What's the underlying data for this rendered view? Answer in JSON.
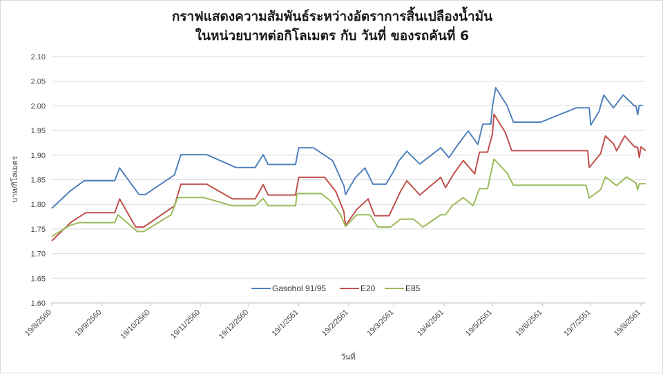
{
  "chart_data": {
    "type": "line",
    "title": "กราฟแสดงความสัมพันธ์ระหว่างอัตราการสิ้นเปลืองน้ำมัน",
    "subtitle": "ในหน่วยบาทต่อกิโลเมตร  กับ วันที่  ของรถคันที่ 6",
    "xlabel": "วันที่",
    "ylabel": "บาท/กิโลเมตร",
    "ylim": [
      1.6,
      2.1
    ],
    "yticks": [
      "1.60",
      "1.65",
      "1.70",
      "1.75",
      "1.80",
      "1.85",
      "1.90",
      "1.95",
      "2.00",
      "2.05",
      "2.10"
    ],
    "xlim": [
      "19/8/2560",
      "19/8/2561"
    ],
    "xticks": [
      "19/8/2560",
      "19/9/2560",
      "19/10/2560",
      "19/11/2560",
      "19/12/2560",
      "19/1/2561",
      "19/2/2561",
      "19/3/2561",
      "19/4/2561",
      "19/5/2561",
      "19/6/2561",
      "19/7/2561",
      "19/8/2561"
    ],
    "grid": "horizontal",
    "legend_position": "bottom-center",
    "series": [
      {
        "name": "Gasohol 91/95",
        "color": "#4f81bd",
        "points": [
          [
            "19/8/2560",
            1.792
          ],
          [
            "30/8/2560",
            1.826
          ],
          [
            "8/9/2560",
            1.848
          ],
          [
            "27/9/2560",
            1.848
          ],
          [
            "30/9/2560",
            1.874
          ],
          [
            "12/10/2560",
            1.82
          ],
          [
            "16/10/2560",
            1.82
          ],
          [
            "3/11/2560",
            1.86
          ],
          [
            "7/11/2560",
            1.901
          ],
          [
            "23/11/2560",
            1.901
          ],
          [
            "11/12/2560",
            1.875
          ],
          [
            "23/12/2560",
            1.875
          ],
          [
            "28/12/2560",
            1.901
          ],
          [
            "31/12/2560",
            1.881
          ],
          [
            "17/1/2561",
            1.881
          ],
          [
            "19/1/2561",
            1.915
          ],
          [
            "28/1/2561",
            1.915
          ],
          [
            "9/2/2561",
            1.889
          ],
          [
            "16/2/2561",
            1.838
          ],
          [
            "17/2/2561",
            1.82
          ],
          [
            "23/2/2561",
            1.854
          ],
          [
            "1/3/2561",
            1.874
          ],
          [
            "6/3/2561",
            1.841
          ],
          [
            "14/3/2561",
            1.841
          ],
          [
            "19/3/2561",
            1.868
          ],
          [
            "22/3/2561",
            1.888
          ],
          [
            "27/3/2561",
            1.908
          ],
          [
            "4/4/2561",
            1.882
          ],
          [
            "17/4/2561",
            1.915
          ],
          [
            "22/4/2561",
            1.895
          ],
          [
            "28/4/2561",
            1.923
          ],
          [
            "4/5/2561",
            1.949
          ],
          [
            "10/5/2561",
            1.922
          ],
          [
            "13/5/2561",
            1.963
          ],
          [
            "18/5/2561",
            1.963
          ],
          [
            "19/5/2561",
            1.998
          ],
          [
            "21/5/2561",
            2.037
          ],
          [
            "28/5/2561",
            2.001
          ],
          [
            "1/6/2561",
            1.967
          ],
          [
            "18/6/2561",
            1.967
          ],
          [
            "10/7/2561",
            1.996
          ],
          [
            "18/7/2561",
            1.996
          ],
          [
            "19/7/2561",
            1.961
          ],
          [
            "24/7/2561",
            1.988
          ],
          [
            "27/7/2561",
            2.022
          ],
          [
            "2/8/2561",
            1.996
          ],
          [
            "8/8/2561",
            2.022
          ],
          [
            "15/8/2561",
            2.0
          ],
          [
            "16/8/2561",
            2.0
          ],
          [
            "17/8/2561",
            1.982
          ],
          [
            "18/8/2561",
            2.001
          ],
          [
            "20/8/2561",
            2.001
          ]
        ]
      },
      {
        "name": "E20",
        "color": "#c0504d",
        "points": [
          [
            "19/8/2560",
            1.726
          ],
          [
            "31/8/2560",
            1.764
          ],
          [
            "9/9/2560",
            1.783
          ],
          [
            "27/9/2560",
            1.783
          ],
          [
            "30/9/2560",
            1.811
          ],
          [
            "10/10/2560",
            1.754
          ],
          [
            "15/10/2560",
            1.754
          ],
          [
            "3/11/2560",
            1.797
          ],
          [
            "7/11/2560",
            1.841
          ],
          [
            "23/11/2560",
            1.841
          ],
          [
            "9/12/2560",
            1.811
          ],
          [
            "23/12/2560",
            1.811
          ],
          [
            "28/12/2560",
            1.84
          ],
          [
            "31/12/2560",
            1.819
          ],
          [
            "17/1/2561",
            1.819
          ],
          [
            "19/1/2561",
            1.855
          ],
          [
            "4/2/2561",
            1.855
          ],
          [
            "11/2/2561",
            1.826
          ],
          [
            "16/2/2561",
            1.785
          ],
          [
            "17/2/2561",
            1.757
          ],
          [
            "24/2/2561",
            1.79
          ],
          [
            "3/3/2561",
            1.811
          ],
          [
            "7/3/2561",
            1.777
          ],
          [
            "16/3/2561",
            1.777
          ],
          [
            "20/3/2561",
            1.805
          ],
          [
            "23/3/2561",
            1.826
          ],
          [
            "27/3/2561",
            1.848
          ],
          [
            "4/4/2561",
            1.819
          ],
          [
            "17/4/2561",
            1.855
          ],
          [
            "20/4/2561",
            1.834
          ],
          [
            "25/4/2561",
            1.862
          ],
          [
            "1/5/2561",
            1.889
          ],
          [
            "8/5/2561",
            1.862
          ],
          [
            "11/5/2561",
            1.906
          ],
          [
            "16/5/2561",
            1.906
          ],
          [
            "19/5/2561",
            1.943
          ],
          [
            "20/5/2561",
            1.983
          ],
          [
            "27/5/2561",
            1.946
          ],
          [
            "31/5/2561",
            1.909
          ],
          [
            "17/7/2561",
            1.909
          ],
          [
            "18/7/2561",
            1.875
          ],
          [
            "25/7/2561",
            1.903
          ],
          [
            "28/7/2561",
            1.939
          ],
          [
            "2/8/2561",
            1.923
          ],
          [
            "4/8/2561",
            1.909
          ],
          [
            "9/8/2561",
            1.939
          ],
          [
            "15/8/2561",
            1.917
          ],
          [
            "17/8/2561",
            1.916
          ],
          [
            "18/8/2561",
            1.895
          ],
          [
            "19/8/2561",
            1.917
          ],
          [
            "22/8/2561",
            1.909
          ]
        ]
      },
      {
        "name": "E85",
        "color": "#9bbb59",
        "points": [
          [
            "19/8/2560",
            1.735
          ],
          [
            "30/8/2560",
            1.757
          ],
          [
            "5/9/2560",
            1.763
          ],
          [
            "27/9/2560",
            1.763
          ],
          [
            "29/9/2560",
            1.779
          ],
          [
            "11/10/2560",
            1.745
          ],
          [
            "15/10/2560",
            1.745
          ],
          [
            "1/11/2560",
            1.779
          ],
          [
            "5/11/2560",
            1.814
          ],
          [
            "21/11/2560",
            1.814
          ],
          [
            "9/12/2560",
            1.797
          ],
          [
            "23/12/2560",
            1.797
          ],
          [
            "28/12/2560",
            1.812
          ],
          [
            "31/12/2560",
            1.797
          ],
          [
            "17/1/2561",
            1.797
          ],
          [
            "18/1/2561",
            1.822
          ],
          [
            "2/2/2561",
            1.822
          ],
          [
            "8/2/2561",
            1.806
          ],
          [
            "14/2/2561",
            1.779
          ],
          [
            "17/2/2561",
            1.755
          ],
          [
            "24/2/2561",
            1.779
          ],
          [
            "4/3/2561",
            1.779
          ],
          [
            "9/3/2561",
            1.754
          ],
          [
            "17/3/2561",
            1.754
          ],
          [
            "23/3/2561",
            1.77
          ],
          [
            "31/3/2561",
            1.77
          ],
          [
            "6/4/2561",
            1.754
          ],
          [
            "17/4/2561",
            1.779
          ],
          [
            "20/4/2561",
            1.779
          ],
          [
            "24/4/2561",
            1.797
          ],
          [
            "1/5/2561",
            1.814
          ],
          [
            "7/5/2561",
            1.797
          ],
          [
            "11/5/2561",
            1.832
          ],
          [
            "16/5/2561",
            1.832
          ],
          [
            "18/5/2561",
            1.863
          ],
          [
            "20/5/2561",
            1.892
          ],
          [
            "28/5/2561",
            1.864
          ],
          [
            "1/6/2561",
            1.839
          ],
          [
            "16/7/2561",
            1.839
          ],
          [
            "18/7/2561",
            1.813
          ],
          [
            "25/7/2561",
            1.83
          ],
          [
            "28/7/2561",
            1.856
          ],
          [
            "4/8/2561",
            1.838
          ],
          [
            "10/8/2561",
            1.856
          ],
          [
            "16/8/2561",
            1.843
          ],
          [
            "17/8/2561",
            1.83
          ],
          [
            "18/8/2561",
            1.842
          ],
          [
            "22/8/2561",
            1.842
          ]
        ]
      }
    ]
  }
}
